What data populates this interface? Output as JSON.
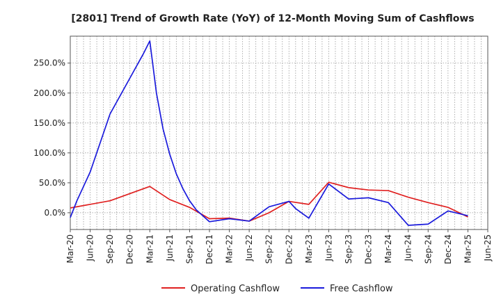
{
  "chart_data": {
    "type": "line",
    "title": "[2801]  Trend of Growth Rate (YoY) of 12-Month Moving Sum of Cashflows",
    "xlabel": "",
    "ylabel": "",
    "ylim": [
      -28,
      295
    ],
    "y_ticks": [
      0,
      50,
      100,
      150,
      200,
      250
    ],
    "y_tick_labels": [
      "0.0%",
      "50.0%",
      "100.0%",
      "150.0%",
      "200.0%",
      "250.0%"
    ],
    "x_tick_labels": [
      "Mar-20",
      "Jun-20",
      "Sep-20",
      "Dec-20",
      "Mar-21",
      "Jun-21",
      "Sep-21",
      "Dec-21",
      "Mar-22",
      "Jun-22",
      "Sep-22",
      "Dec-22",
      "Mar-23",
      "Jun-23",
      "Sep-23",
      "Dec-23",
      "Mar-24",
      "Jun-24",
      "Sep-24",
      "Dec-24",
      "Mar-25",
      "Jun-25"
    ],
    "grid": true,
    "legend_position": "bottom-center",
    "series": [
      {
        "name": "Operating Cashflow",
        "color": "#e02020",
        "points": [
          [
            "Mar-20",
            8
          ],
          [
            "Sep-20",
            20
          ],
          [
            "Mar-21",
            44
          ],
          [
            "Jun-21",
            22
          ],
          [
            "Sep-21",
            9
          ],
          [
            "Dec-21",
            -10
          ],
          [
            "Mar-22",
            -9
          ],
          [
            "Jun-22",
            -14
          ],
          [
            "Sep-22",
            0
          ],
          [
            "Dec-22",
            19
          ],
          [
            "Mar-23",
            14
          ],
          [
            "Jun-23",
            51
          ],
          [
            "Sep-23",
            42
          ],
          [
            "Dec-23",
            38
          ],
          [
            "Mar-24",
            37
          ],
          [
            "Jun-24",
            26
          ],
          [
            "Sep-24",
            17
          ],
          [
            "Dec-24",
            9
          ],
          [
            "Mar-25",
            -7
          ]
        ]
      },
      {
        "name": "Free Cashflow",
        "color": "#1a1adc",
        "points": [
          [
            "Mar-20",
            -8
          ],
          [
            "Apr-20",
            20
          ],
          [
            "Jun-20",
            68
          ],
          [
            "Sep-20",
            165
          ],
          [
            "Dec-20",
            225
          ],
          [
            "Feb-21",
            265
          ],
          [
            "Mar-21",
            287
          ],
          [
            "Apr-21",
            200
          ],
          [
            "May-21",
            140
          ],
          [
            "Jun-21",
            98
          ],
          [
            "Jul-21",
            65
          ],
          [
            "Aug-21",
            40
          ],
          [
            "Sep-21",
            20
          ],
          [
            "Oct-21",
            5
          ],
          [
            "Dec-21",
            -15
          ],
          [
            "Mar-22",
            -10
          ],
          [
            "Jun-22",
            -14
          ],
          [
            "Sep-22",
            10
          ],
          [
            "Dec-22",
            19
          ],
          [
            "Jan-23",
            7
          ],
          [
            "Mar-23",
            -9
          ],
          [
            "Jun-23",
            48
          ],
          [
            "Sep-23",
            23
          ],
          [
            "Dec-23",
            25
          ],
          [
            "Mar-24",
            17
          ],
          [
            "Jun-24",
            -21
          ],
          [
            "Sep-24",
            -19
          ],
          [
            "Dec-24",
            3
          ],
          [
            "Mar-25",
            -5
          ]
        ]
      }
    ]
  }
}
